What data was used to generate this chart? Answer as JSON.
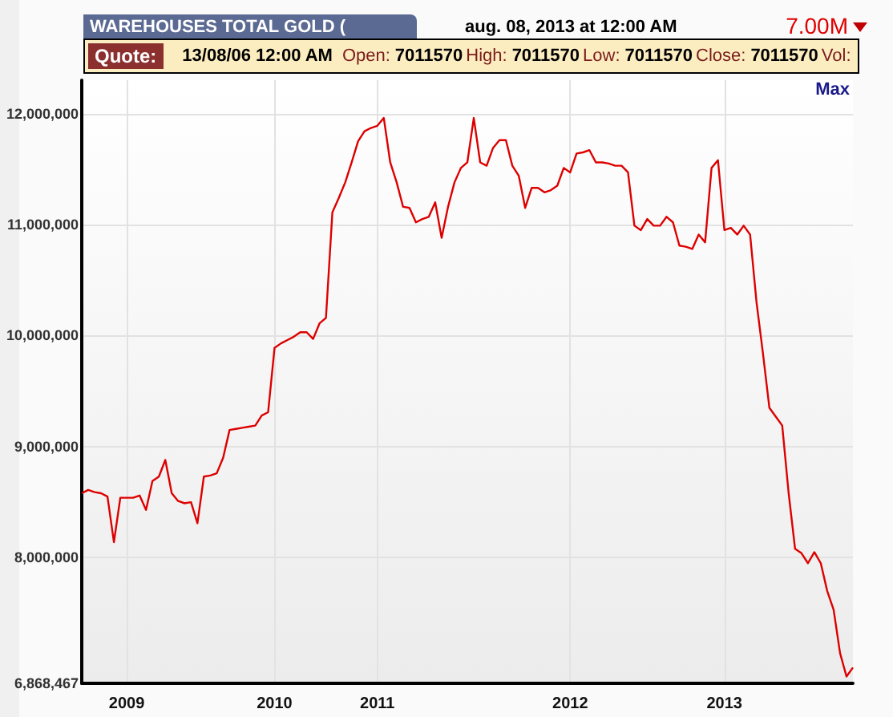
{
  "chart_data": {
    "type": "line",
    "title": "WAREHOUSES TOTAL GOLD (",
    "annotations": [
      "aug. 08, 2013 at 12:00 AM",
      "7.00M",
      "Quote:",
      "13/08/06 12:00 AM",
      "Open:",
      "7011570",
      "High:",
      "7011570",
      "Low:",
      "7011570",
      "Close:",
      "7011570",
      "Vol:",
      "Max"
    ],
    "categories": [
      null,
      null,
      null,
      null,
      null,
      null,
      null,
      "2009",
      null,
      null,
      null,
      null,
      null,
      null,
      null,
      null,
      null,
      null,
      null,
      null,
      null,
      null,
      null,
      null,
      null,
      null,
      null,
      null,
      null,
      null,
      "2010",
      null,
      null,
      null,
      null,
      null,
      null,
      null,
      null,
      null,
      null,
      null,
      null,
      null,
      null,
      null,
      "2011",
      null,
      null,
      null,
      null,
      null,
      null,
      null,
      null,
      null,
      null,
      null,
      null,
      null,
      null,
      null,
      null,
      null,
      null,
      null,
      null,
      null,
      null,
      null,
      null,
      null,
      null,
      null,
      null,
      null,
      "2012",
      null,
      null,
      null,
      null,
      null,
      null,
      null,
      null,
      null,
      null,
      null,
      null,
      null,
      null,
      null,
      null,
      null,
      null,
      null,
      null,
      null,
      null,
      null,
      "2013",
      null,
      null,
      null,
      null,
      null,
      null,
      null,
      null,
      null,
      null,
      null,
      null,
      null,
      null,
      null,
      null,
      null,
      null,
      null,
      null
    ],
    "series": [
      {
        "color": "#dd0000",
        "values": [
          8580000,
          8610000,
          8590000,
          8580000,
          8550000,
          8140000,
          8540000,
          8540000,
          8540000,
          8560000,
          8430000,
          8690000,
          8730000,
          8880000,
          8580000,
          8510000,
          8490000,
          8500000,
          8310000,
          8730000,
          8740000,
          8760000,
          8900000,
          9150000,
          9160000,
          9170000,
          9180000,
          9190000,
          9280000,
          9310000,
          9890000,
          9930000,
          9960000,
          9990000,
          10030000,
          10030000,
          9970000,
          10110000,
          10160000,
          11110000,
          11240000,
          11380000,
          11560000,
          11750000,
          11840000,
          11870000,
          11890000,
          11960000,
          11560000,
          11380000,
          11160000,
          11150000,
          11020000,
          11050000,
          11070000,
          11200000,
          10880000,
          11160000,
          11380000,
          11510000,
          11560000,
          11960000,
          11560000,
          11530000,
          11690000,
          11760000,
          11760000,
          11530000,
          11440000,
          11150000,
          11330000,
          11330000,
          11290000,
          11310000,
          11350000,
          11510000,
          11470000,
          11640000,
          11650000,
          11670000,
          11560000,
          11560000,
          11550000,
          11530000,
          11530000,
          11470000,
          10990000,
          10950000,
          11050000,
          10990000,
          10990000,
          11070000,
          11020000,
          10810000,
          10800000,
          10780000,
          10910000,
          10840000,
          11510000,
          11580000,
          10950000,
          10970000,
          10910000,
          10990000,
          10910000,
          10300000,
          9840000,
          9350000,
          9270000,
          9190000,
          8580000,
          8080000,
          8040000,
          7950000,
          8050000,
          7950000,
          7700000,
          7530000,
          7140000,
          6930000,
          7010000
        ]
      }
    ],
    "ylim": [
      6868467,
      12300000
    ],
    "yticks": [
      {
        "value": 6868467,
        "label": "6,868,467"
      },
      {
        "value": 8000000,
        "label": "8,000,000"
      },
      {
        "value": 9000000,
        "label": "9,000,000"
      },
      {
        "value": 10000000,
        "label": "10,000,000"
      },
      {
        "value": 11000000,
        "label": "11,000,000"
      },
      {
        "value": 12000000,
        "label": "12,000,000"
      }
    ],
    "grid": true
  }
}
